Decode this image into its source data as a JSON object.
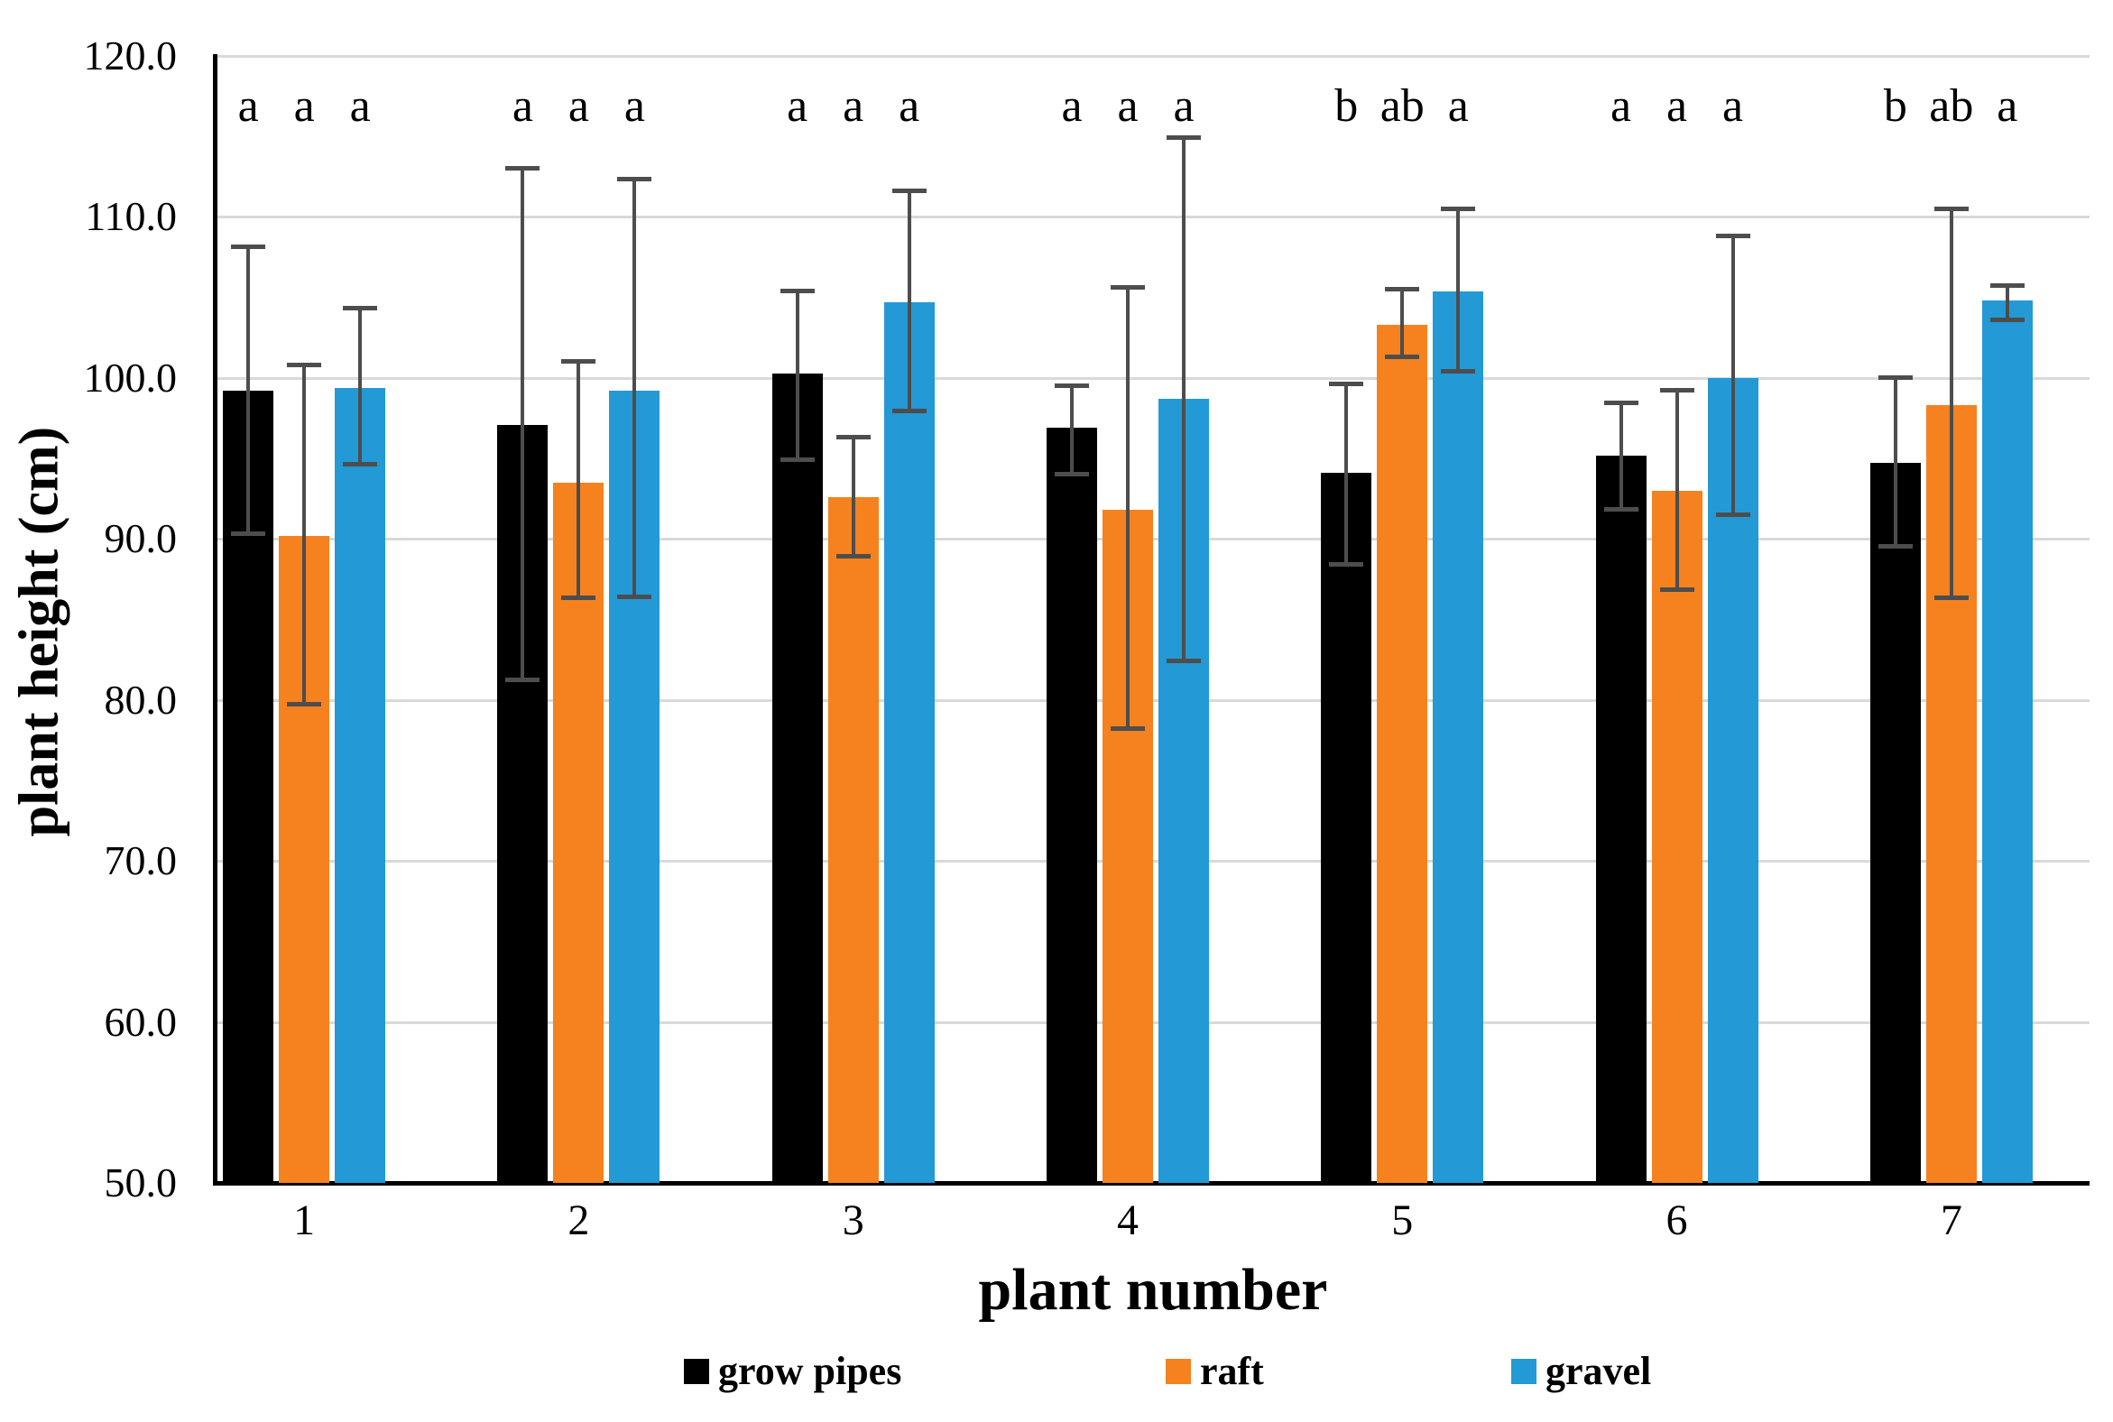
{
  "chart_data": {
    "type": "bar",
    "title": "",
    "xlabel": "plant number",
    "ylabel": "plant height (cm)",
    "ylim": [
      50,
      120
    ],
    "grid": true,
    "legend_position": "bottom",
    "gridline_color": "#D9D9D9",
    "error_bar_color": "#4D4D4D",
    "y_ticks": [
      {
        "value": 120,
        "label": "120.0"
      },
      {
        "value": 110,
        "label": "110.0"
      },
      {
        "value": 100,
        "label": "100.0"
      },
      {
        "value": 90,
        "label": "90.0"
      },
      {
        "value": 80,
        "label": "80.0"
      },
      {
        "value": 70,
        "label": "70.0"
      },
      {
        "value": 60,
        "label": "60.0"
      },
      {
        "value": 50,
        "label": "50.0"
      }
    ],
    "categories": [
      "1",
      "2",
      "3",
      "4",
      "5",
      "6",
      "7"
    ],
    "series": [
      {
        "name": "grow pipes",
        "color": "#000000",
        "values": [
          99.2,
          97.1,
          100.3,
          96.9,
          94.1,
          95.2,
          94.7
        ],
        "error_low": [
          90.3,
          81.2,
          94.9,
          94.0,
          88.4,
          91.8,
          89.5
        ],
        "error_high": [
          108.1,
          113.0,
          105.4,
          99.5,
          99.6,
          98.4,
          100.0
        ]
      },
      {
        "name": "raft",
        "color": "#F5821E",
        "values": [
          90.2,
          93.5,
          92.6,
          91.8,
          103.3,
          93.0,
          98.3
        ],
        "error_low": [
          79.7,
          86.3,
          88.9,
          78.2,
          101.3,
          86.8,
          86.3
        ],
        "error_high": [
          100.8,
          101.0,
          96.3,
          105.6,
          105.5,
          99.2,
          110.5
        ]
      },
      {
        "name": "gravel",
        "color": "#2399D6",
        "values": [
          99.4,
          99.2,
          104.7,
          98.7,
          105.4,
          100.0,
          104.8
        ],
        "error_low": [
          94.6,
          86.4,
          97.9,
          82.4,
          100.4,
          91.5,
          103.6
        ],
        "error_high": [
          104.3,
          112.3,
          111.6,
          114.9,
          110.5,
          108.8,
          105.7
        ]
      }
    ],
    "sig_letters": [
      [
        "a",
        "a",
        "a"
      ],
      [
        "a",
        "a",
        "a"
      ],
      [
        "a",
        "a",
        "a"
      ],
      [
        "a",
        "a",
        "a"
      ],
      [
        "b",
        "ab",
        "a"
      ],
      [
        "a",
        "a",
        "a"
      ],
      [
        "b",
        "ab",
        "a"
      ]
    ]
  }
}
